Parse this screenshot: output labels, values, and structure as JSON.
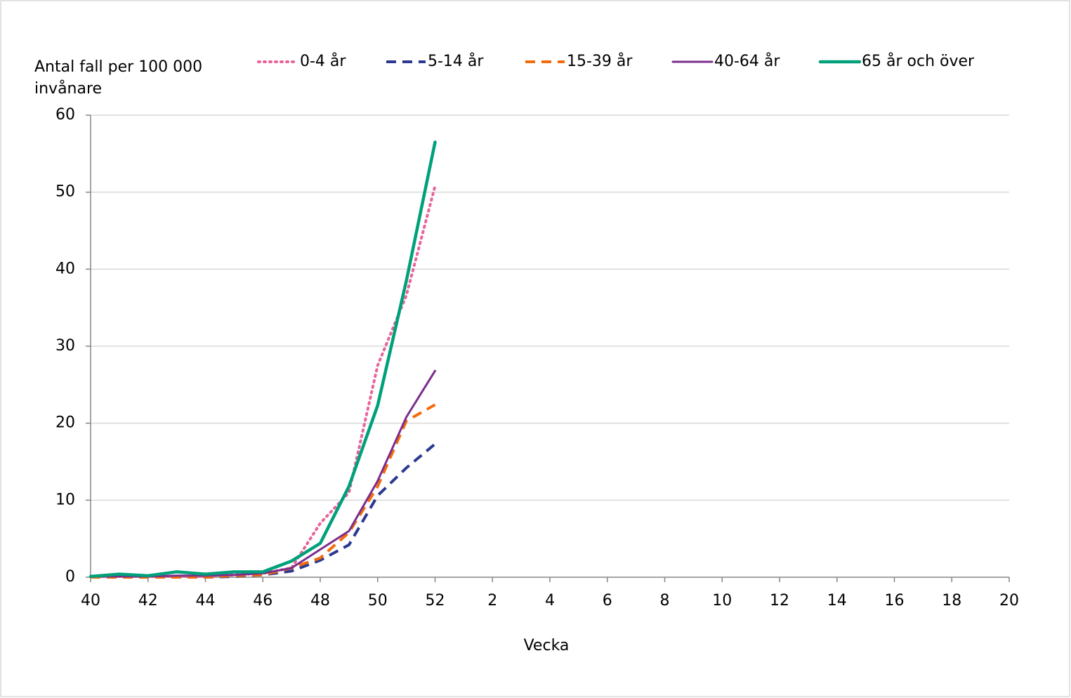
{
  "chart_data": {
    "type": "line",
    "y_label": "Antal fall per 100 000 invånare",
    "x_label": "Vecka",
    "categories": [
      "40",
      null,
      "42",
      null,
      "44",
      null,
      "46",
      null,
      "48",
      null,
      "50",
      null,
      "52",
      null,
      "2",
      null,
      "4",
      null,
      "6",
      null,
      "8",
      null,
      "10",
      null,
      "12",
      null,
      "14",
      null,
      "16",
      null,
      "18",
      null,
      "20"
    ],
    "series": [
      {
        "name": "0-4 år",
        "color": "#e8649c",
        "dash": "dot",
        "values": [
          0.1,
          0.1,
          0.1,
          0.1,
          0.1,
          0.3,
          0.5,
          1.2,
          7.0,
          11.0,
          27.5,
          36.6,
          50.8,
          null,
          null,
          null,
          null,
          null,
          null,
          null,
          null,
          null,
          null,
          null,
          null,
          null,
          null,
          null,
          null,
          null,
          null,
          null,
          null
        ]
      },
      {
        "name": "5-14 år",
        "color": "#2b3990",
        "dash": "dash",
        "values": [
          0,
          0,
          0.1,
          0.1,
          0,
          0.1,
          0.3,
          0.8,
          2.2,
          4.2,
          10.6,
          14.2,
          17.3,
          null,
          null,
          null,
          null,
          null,
          null,
          null,
          null,
          null,
          null,
          null,
          null,
          null,
          null,
          null,
          null,
          null,
          null,
          null,
          null
        ]
      },
      {
        "name": "15-39 år",
        "color": "#f26c0d",
        "dash": "dash",
        "values": [
          0,
          0,
          0,
          0,
          0,
          0.2,
          0.3,
          1.2,
          2.5,
          5.8,
          11.8,
          20.3,
          22.4,
          null,
          null,
          null,
          null,
          null,
          null,
          null,
          null,
          null,
          null,
          null,
          null,
          null,
          null,
          null,
          null,
          null,
          null,
          null,
          null
        ]
      },
      {
        "name": "40-64 år",
        "color": "#7b2d8e",
        "dash": "solid",
        "values": [
          0.1,
          0.1,
          0.1,
          0.2,
          0.2,
          0.3,
          0.5,
          1.2,
          3.6,
          6.0,
          12.5,
          20.8,
          26.8,
          null,
          null,
          null,
          null,
          null,
          null,
          null,
          null,
          null,
          null,
          null,
          null,
          null,
          null,
          null,
          null,
          null,
          null,
          null,
          null
        ]
      },
      {
        "name": "65 år och över",
        "color": "#00a07a",
        "dash": "solid",
        "values": [
          0.1,
          0.4,
          0.2,
          0.7,
          0.4,
          0.7,
          0.7,
          2.1,
          4.4,
          11.8,
          22.3,
          38.5,
          56.5,
          null,
          null,
          null,
          null,
          null,
          null,
          null,
          null,
          null,
          null,
          null,
          null,
          null,
          null,
          null,
          null,
          null,
          null,
          null,
          null
        ]
      }
    ],
    "ylim": [
      0,
      60
    ],
    "yticks": [
      0,
      10,
      20,
      30,
      40,
      50,
      60
    ],
    "grid": true
  }
}
